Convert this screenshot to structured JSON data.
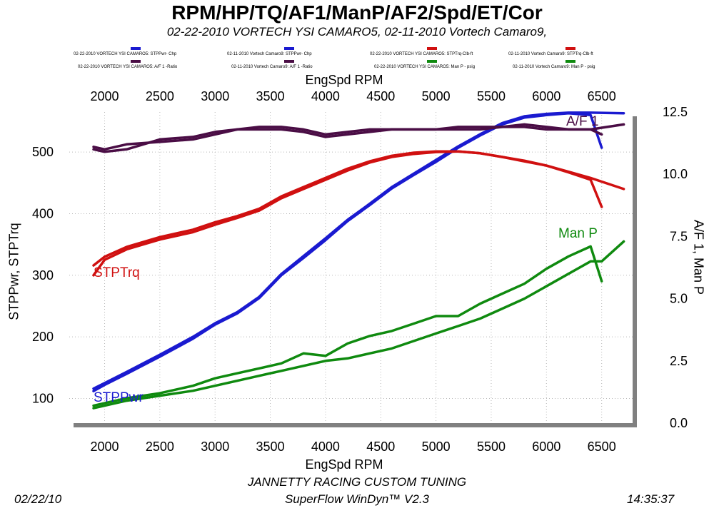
{
  "chart_data": {
    "type": "line",
    "title": "RPM/HP/TQ/AF1/ManP/AF2/Spd/ET/Cor",
    "subtitle": "02-22-2010 VORTECH YSI CAMARO5, 02-11-2010 Vortech Camaro9,",
    "xlabel": "EngSpd  RPM",
    "ylabel_left": "STPPwr, STPTrq",
    "ylabel_right": "A/F 1, Man P",
    "x_ticks": [
      "2000",
      "2500",
      "3000",
      "3500",
      "4000",
      "4500",
      "5000",
      "5500",
      "6000",
      "6500"
    ],
    "y_left_ticks": [
      "100",
      "200",
      "300",
      "400",
      "500"
    ],
    "y_right_ticks": [
      "0.0",
      "2.5",
      "5.0",
      "7.5",
      "10.0",
      "12.5"
    ],
    "xlim": [
      1680,
      6780
    ],
    "ylim_left": [
      60,
      565
    ],
    "ylim_right": [
      0,
      12.5
    ],
    "annotations": {
      "af": "A/F 1",
      "manp": "Man P",
      "trq": "STPTrq",
      "pwr": "STPPwr"
    },
    "legend": [
      {
        "label": "02-22-2010 VORTECH YSI CAMARO5: STPPwr- Chp",
        "color": "#1a1ad0"
      },
      {
        "label": "02-11-2010 Vortech Camaro9: STPPwr- Chp",
        "color": "#1a1ad0"
      },
      {
        "label": "02-22-2010 VORTECH YSI CAMARO5: STPTrq-Clb-ft",
        "color": "#d01010"
      },
      {
        "label": "02-11-2010 Vortech Camaro9: STPTrq-Clb-ft",
        "color": "#d01010"
      },
      {
        "label": "02-22-2010 VORTECH YSI CAMARO5: A/F 1 -Ratio",
        "color": "#4a0d45"
      },
      {
        "label": "02-11-2010 Vortech Camaro9: A/F 1 -Ratio",
        "color": "#4a0d45"
      },
      {
        "label": "02-22-2010 VORTECH YSI CAMARO5: Man P - psig",
        "color": "#0f8a0f"
      },
      {
        "label": "02-11-2010 Vortech Camaro9: Man P - psig",
        "color": "#0f8a0f"
      }
    ],
    "series": [
      {
        "name": "Camaro5 STPPwr",
        "axis": "left",
        "color": "#1a1ad0",
        "x": [
          1900,
          2000,
          2200,
          2500,
          2800,
          3000,
          3200,
          3400,
          3600,
          3800,
          4000,
          4200,
          4400,
          4600,
          4800,
          5000,
          5200,
          5400,
          5600,
          5800,
          6000,
          6200,
          6400,
          6500
        ],
        "y": [
          112,
          122,
          140,
          168,
          197,
          220,
          238,
          263,
          300,
          328,
          357,
          388,
          414,
          441,
          463,
          484,
          507,
          527,
          545,
          556,
          560,
          563,
          560,
          507
        ]
      },
      {
        "name": "Camaro9 STPPwr",
        "axis": "left",
        "color": "#1a1ad0",
        "x": [
          1900,
          2000,
          2200,
          2500,
          2800,
          3000,
          3200,
          3400,
          3600,
          3800,
          4000,
          4200,
          4400,
          4600,
          4800,
          5000,
          5200,
          5400,
          5600,
          5800,
          6000,
          6200,
          6400,
          6700
        ],
        "y": [
          116,
          125,
          143,
          171,
          200,
          222,
          240,
          265,
          302,
          331,
          360,
          390,
          416,
          443,
          465,
          487,
          509,
          529,
          547,
          558,
          562,
          564,
          564,
          563
        ]
      },
      {
        "name": "Camaro5 STPTrq",
        "axis": "left",
        "color": "#d01010",
        "x": [
          1900,
          2000,
          2200,
          2500,
          2800,
          3000,
          3200,
          3400,
          3600,
          3800,
          4000,
          4200,
          4400,
          4600,
          4800,
          5000,
          5200,
          5400,
          5600,
          5800,
          6000,
          6200,
          6400,
          6500
        ],
        "y": [
          300,
          325,
          342,
          358,
          370,
          382,
          393,
          405,
          425,
          440,
          455,
          470,
          483,
          492,
          497,
          500,
          501,
          498,
          492,
          485,
          478,
          467,
          455,
          411
        ]
      },
      {
        "name": "Camaro9 STPTrq",
        "axis": "left",
        "color": "#d01010",
        "x": [
          1900,
          2000,
          2200,
          2500,
          2800,
          3000,
          3200,
          3400,
          3600,
          3800,
          4000,
          4200,
          4400,
          4600,
          4800,
          5000,
          5200,
          5400,
          5600,
          5800,
          6000,
          6200,
          6400,
          6700
        ],
        "y": [
          316,
          330,
          346,
          362,
          374,
          386,
          396,
          408,
          428,
          443,
          458,
          473,
          485,
          494,
          499,
          501,
          501,
          498,
          492,
          486,
          478,
          468,
          458,
          440
        ]
      },
      {
        "name": "Camaro5 A/F 1",
        "axis": "right",
        "color": "#4a0d45",
        "x": [
          1900,
          2000,
          2200,
          2500,
          2800,
          3000,
          3200,
          3400,
          3600,
          3800,
          4000,
          4200,
          4400,
          4600,
          4800,
          5000,
          5200,
          5400,
          5600,
          5800,
          6000,
          6200,
          6400,
          6500
        ],
        "y": [
          11.0,
          10.9,
          11.0,
          11.4,
          11.5,
          11.7,
          11.8,
          11.8,
          11.8,
          11.7,
          11.5,
          11.6,
          11.7,
          11.8,
          11.8,
          11.8,
          11.8,
          11.8,
          11.9,
          12.0,
          11.9,
          11.8,
          11.8,
          11.6
        ]
      },
      {
        "name": "Camaro9 A/F 1",
        "axis": "right",
        "color": "#4a0d45",
        "x": [
          1900,
          2000,
          2200,
          2500,
          2800,
          3000,
          3200,
          3400,
          3600,
          3800,
          4000,
          4200,
          4400,
          4600,
          4800,
          5000,
          5200,
          5400,
          5600,
          5800,
          6000,
          6200,
          6400,
          6700
        ],
        "y": [
          11.1,
          11.0,
          11.2,
          11.3,
          11.4,
          11.6,
          11.8,
          11.9,
          11.9,
          11.8,
          11.6,
          11.7,
          11.8,
          11.8,
          11.8,
          11.8,
          11.9,
          11.9,
          11.9,
          11.9,
          11.8,
          11.8,
          11.8,
          12.0
        ]
      },
      {
        "name": "Camaro5 Man P",
        "axis": "right",
        "color": "#0f8a0f",
        "x": [
          1900,
          2000,
          2200,
          2500,
          2800,
          3000,
          3200,
          3400,
          3600,
          3800,
          4000,
          4200,
          4400,
          4600,
          4800,
          5000,
          5200,
          5400,
          5600,
          5800,
          6000,
          6200,
          6400,
          6500
        ],
        "y": [
          0.7,
          0.8,
          1.0,
          1.2,
          1.5,
          1.8,
          2.0,
          2.2,
          2.4,
          2.8,
          2.7,
          3.2,
          3.5,
          3.7,
          4.0,
          4.3,
          4.3,
          4.8,
          5.2,
          5.6,
          6.2,
          6.7,
          7.1,
          5.7
        ]
      },
      {
        "name": "Camaro9 Man P",
        "axis": "right",
        "color": "#0f8a0f",
        "x": [
          1900,
          2000,
          2200,
          2500,
          2800,
          3000,
          3200,
          3400,
          3600,
          3800,
          4000,
          4200,
          4400,
          4600,
          4800,
          5000,
          5200,
          5400,
          5600,
          5800,
          6000,
          6200,
          6400,
          6500,
          6700
        ],
        "y": [
          0.6,
          0.7,
          0.9,
          1.1,
          1.3,
          1.5,
          1.7,
          1.9,
          2.1,
          2.3,
          2.5,
          2.6,
          2.8,
          3.0,
          3.3,
          3.6,
          3.9,
          4.2,
          4.6,
          5.0,
          5.5,
          6.0,
          6.5,
          6.5,
          7.3
        ]
      }
    ]
  },
  "footer": {
    "date": "02/22/10",
    "shop": "JANNETTY RACING CUSTOM TUNING",
    "software": "SuperFlow WinDyn™ V2.3",
    "time": "14:35:37"
  }
}
